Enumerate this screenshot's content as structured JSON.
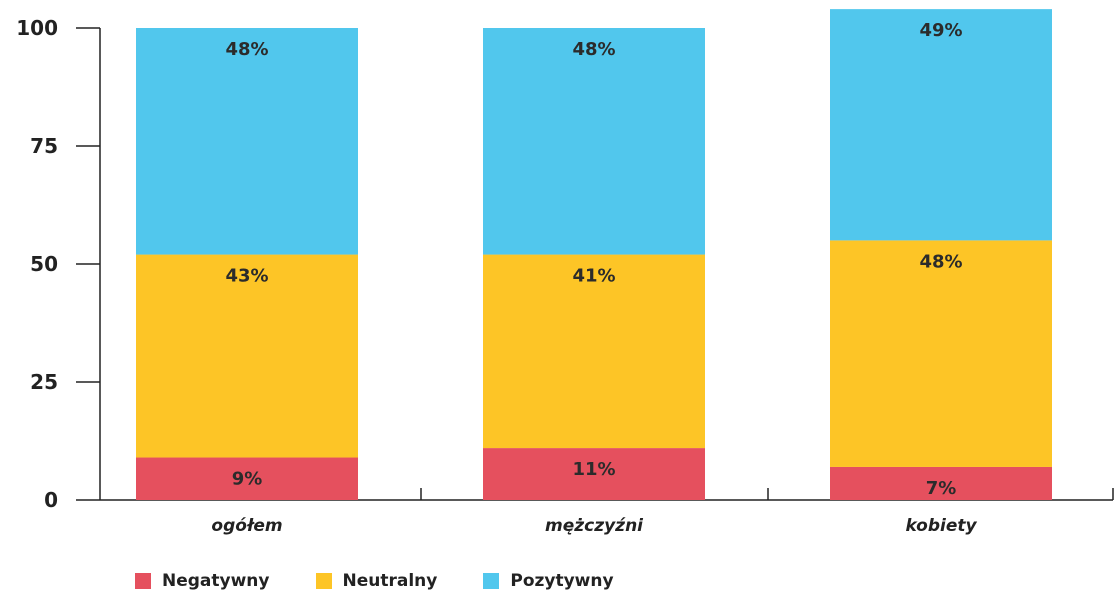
{
  "chart_data": {
    "type": "bar",
    "stacked": true,
    "categories": [
      "ogółem",
      "mężczyźni",
      "kobiety"
    ],
    "series": [
      {
        "name": "Negatywny",
        "color": "#e5505e",
        "values": [
          9,
          11,
          7
        ],
        "labels": [
          "9%",
          "11%",
          "7%"
        ]
      },
      {
        "name": "Neutralny",
        "color": "#fdc526",
        "values": [
          43,
          41,
          48
        ],
        "labels": [
          "43%",
          "41%",
          "48%"
        ]
      },
      {
        "name": "Pozytywny",
        "color": "#51c7ed",
        "values": [
          48,
          48,
          49
        ],
        "labels": [
          "48%",
          "48%",
          "49%"
        ]
      }
    ],
    "ylim": [
      0,
      100
    ],
    "yticks": [
      0,
      25,
      50,
      75,
      100
    ],
    "xlabel": "",
    "ylabel": "",
    "title": "",
    "grid": false,
    "legend": "bottom-left"
  }
}
